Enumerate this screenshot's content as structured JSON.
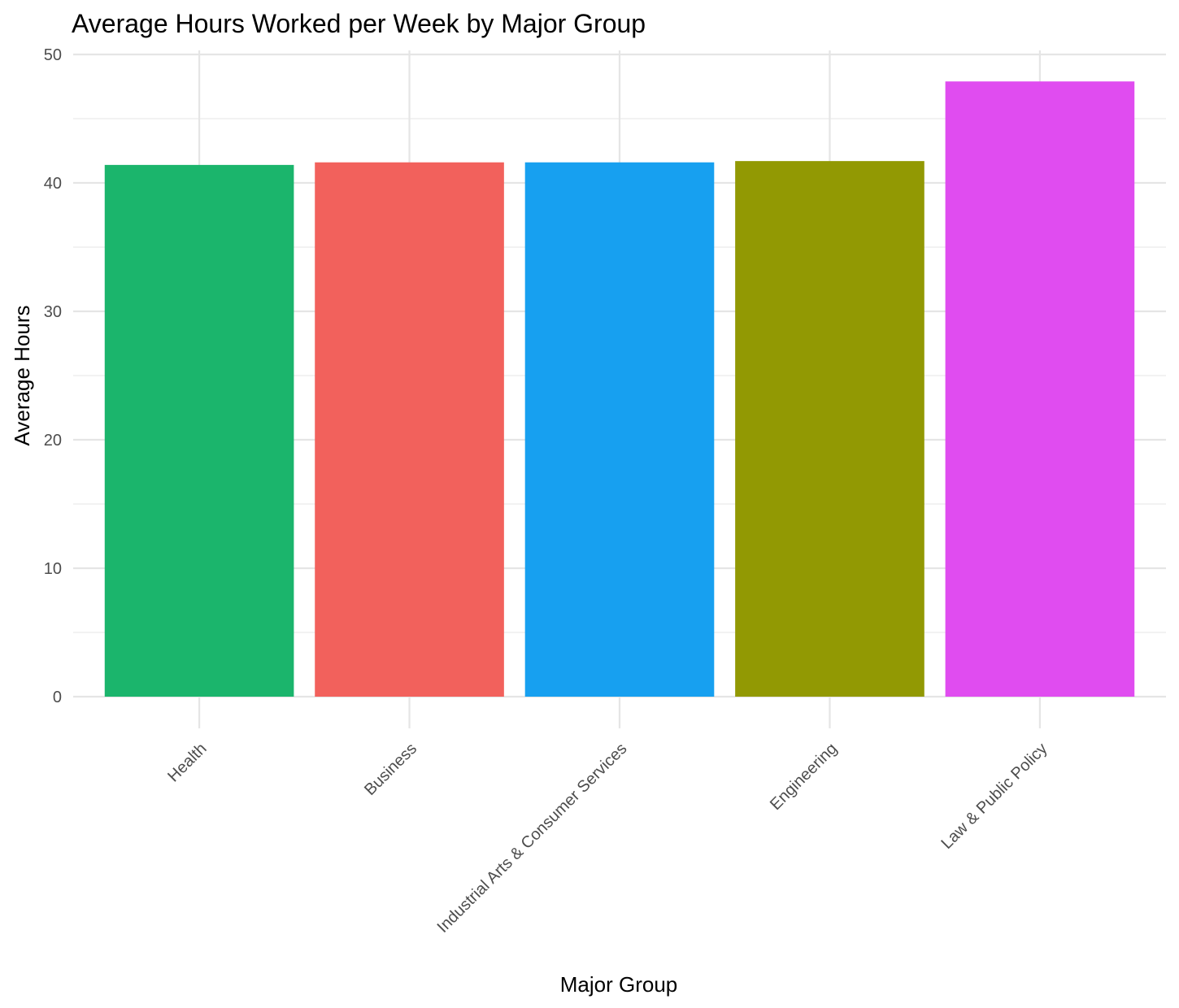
{
  "chart_data": {
    "type": "bar",
    "title": "Average Hours Worked per Week by Major Group",
    "xlabel": "Major Group",
    "ylabel": "Average Hours",
    "categories": [
      "Health",
      "Business",
      "Industrial Arts & Consumer Services",
      "Engineering",
      "Law & Public Policy"
    ],
    "values": [
      41.4,
      41.6,
      41.6,
      41.7,
      47.9
    ],
    "colors": [
      "#1bb56c",
      "#f2615c",
      "#17a0f0",
      "#929903",
      "#e04cf0"
    ],
    "ylim": [
      0,
      50
    ],
    "yticks": [
      0,
      10,
      20,
      30,
      40,
      50
    ],
    "grid": true,
    "legend": "none"
  }
}
